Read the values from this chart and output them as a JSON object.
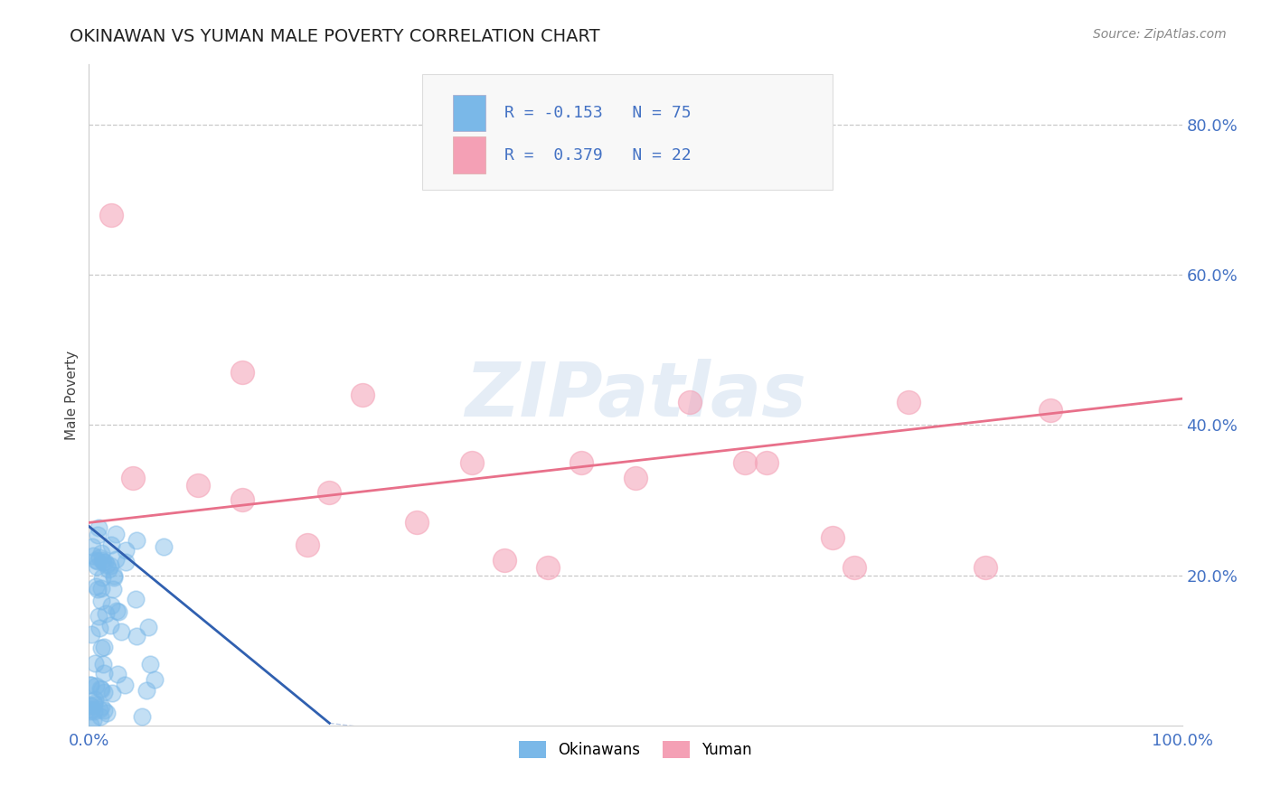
{
  "title": "OKINAWAN VS YUMAN MALE POVERTY CORRELATION CHART",
  "source": "Source: ZipAtlas.com",
  "ylabel": "Male Poverty",
  "xlim": [
    0,
    1.0
  ],
  "ylim": [
    0,
    0.88
  ],
  "xtick_positions": [
    0.0,
    0.2,
    0.4,
    0.6,
    0.8,
    1.0
  ],
  "xtick_labels": [
    "0.0%",
    "",
    "",
    "",
    "",
    "100.0%"
  ],
  "ytick_positions": [
    0.2,
    0.4,
    0.6,
    0.8
  ],
  "ytick_labels": [
    "20.0%",
    "40.0%",
    "60.0%",
    "80.0%"
  ],
  "legend_labels": [
    "Okinawans",
    "Yuman"
  ],
  "okinawan_color": "#7ab8e8",
  "yuman_color": "#f4a0b5",
  "okinawan_line_color": "#3060b0",
  "yuman_line_color": "#e8708a",
  "watermark_text": "ZIPatlas",
  "R_okinawan": -0.153,
  "N_okinawan": 75,
  "R_yuman": 0.379,
  "N_yuman": 22,
  "yuman_x": [
    0.02,
    0.04,
    0.1,
    0.14,
    0.22,
    0.25,
    0.3,
    0.38,
    0.45,
    0.5,
    0.55,
    0.62,
    0.68,
    0.75,
    0.82,
    0.88,
    0.14,
    0.2,
    0.35,
    0.42,
    0.6,
    0.7
  ],
  "yuman_y": [
    0.68,
    0.33,
    0.32,
    0.3,
    0.31,
    0.44,
    0.27,
    0.22,
    0.35,
    0.33,
    0.43,
    0.35,
    0.25,
    0.43,
    0.21,
    0.42,
    0.47,
    0.24,
    0.35,
    0.21,
    0.35,
    0.21
  ],
  "ok_trend_x0": 0.0,
  "ok_trend_x1": 0.22,
  "ok_trend_y0": 0.265,
  "ok_trend_y1": 0.003,
  "yum_trend_x0": 0.0,
  "yum_trend_x1": 1.0,
  "yum_trend_y0": 0.27,
  "yum_trend_y1": 0.435
}
